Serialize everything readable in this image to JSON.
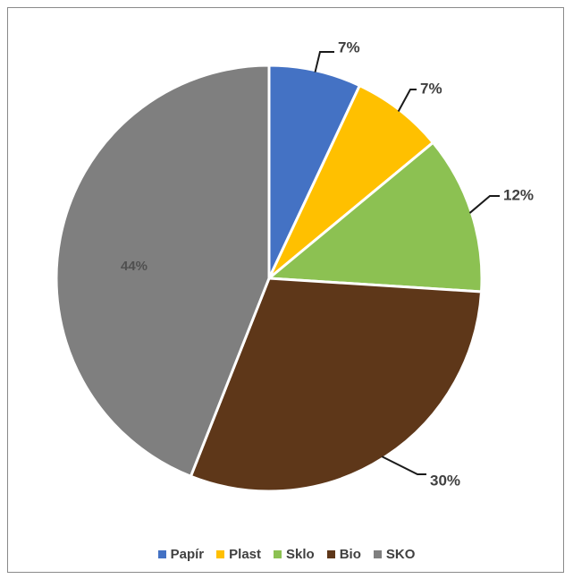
{
  "chart_data": {
    "type": "pie",
    "title": "",
    "slices": [
      {
        "label": "Papír",
        "value": 7,
        "display": "7%",
        "color": "#4472C4"
      },
      {
        "label": "Plast",
        "value": 7,
        "display": "7%",
        "color": "#FFC000"
      },
      {
        "label": "Sklo",
        "value": 12,
        "display": "12%",
        "color": "#8CC152"
      },
      {
        "label": "Bio",
        "value": 30,
        "display": "30%",
        "color": "#5E3719"
      },
      {
        "label": "SKO",
        "value": 44,
        "display": "44%",
        "color": "#7F7F7F"
      }
    ],
    "start_angle_deg": 0,
    "direction": "clockwise",
    "legend_position": "bottom"
  }
}
